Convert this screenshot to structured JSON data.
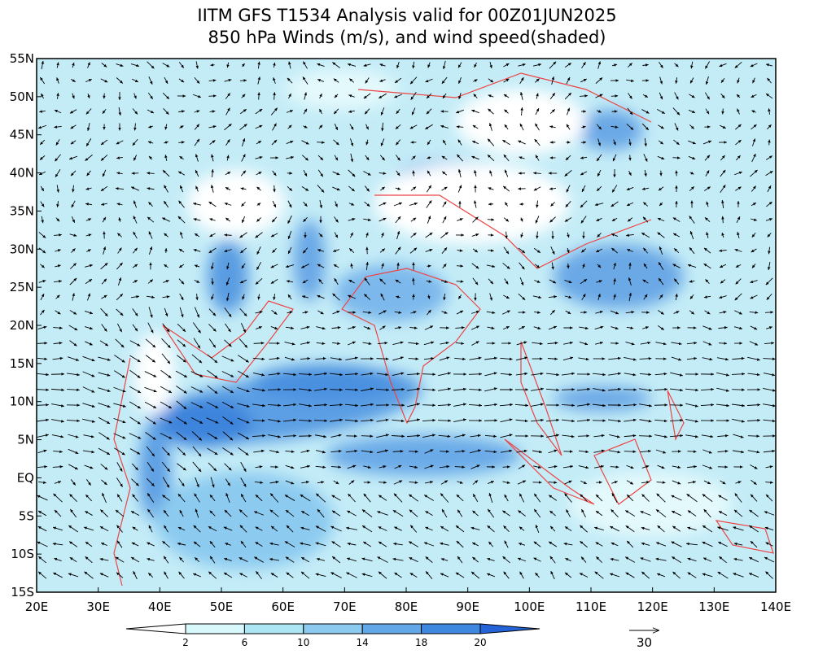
{
  "title": [
    "IITM GFS T1534 Analysis valid for 00Z01JUN2025",
    "850 hPa Winds (m/s), and wind speed(shaded)"
  ],
  "map": {
    "lonlim": [
      20,
      140
    ],
    "latlim": [
      -15,
      55
    ],
    "lon_ticks": [
      {
        "value": 20,
        "label": "20E"
      },
      {
        "value": 30,
        "label": "30E"
      },
      {
        "value": 40,
        "label": "40E"
      },
      {
        "value": 50,
        "label": "50E"
      },
      {
        "value": 60,
        "label": "60E"
      },
      {
        "value": 70,
        "label": "70E"
      },
      {
        "value": 80,
        "label": "80E"
      },
      {
        "value": 90,
        "label": "90E"
      },
      {
        "value": 100,
        "label": "100E"
      },
      {
        "value": 110,
        "label": "110E"
      },
      {
        "value": 120,
        "label": "120E"
      },
      {
        "value": 130,
        "label": "130E"
      },
      {
        "value": 140,
        "label": "140E"
      }
    ],
    "lat_ticks": [
      {
        "value": -15,
        "label": "15S"
      },
      {
        "value": -10,
        "label": "10S"
      },
      {
        "value": -5,
        "label": "5S"
      },
      {
        "value": 0,
        "label": "EQ"
      },
      {
        "value": 5,
        "label": "5N"
      },
      {
        "value": 10,
        "label": "10N"
      },
      {
        "value": 15,
        "label": "15N"
      },
      {
        "value": 20,
        "label": "20N"
      },
      {
        "value": 25,
        "label": "25N"
      },
      {
        "value": 30,
        "label": "30N"
      },
      {
        "value": 35,
        "label": "35N"
      },
      {
        "value": 40,
        "label": "40N"
      },
      {
        "value": 45,
        "label": "45N"
      },
      {
        "value": 50,
        "label": "50N"
      },
      {
        "value": 55,
        "label": "55N"
      }
    ]
  },
  "colorbar": {
    "levels": [
      2,
      6,
      10,
      14,
      18,
      20
    ],
    "colors": [
      "#ffffff",
      "#d8f8fb",
      "#ace6f4",
      "#8ccaf0",
      "#62a8e8",
      "#3e88e0",
      "#2564d8"
    ]
  },
  "reference_vector": {
    "value": 30
  }
}
